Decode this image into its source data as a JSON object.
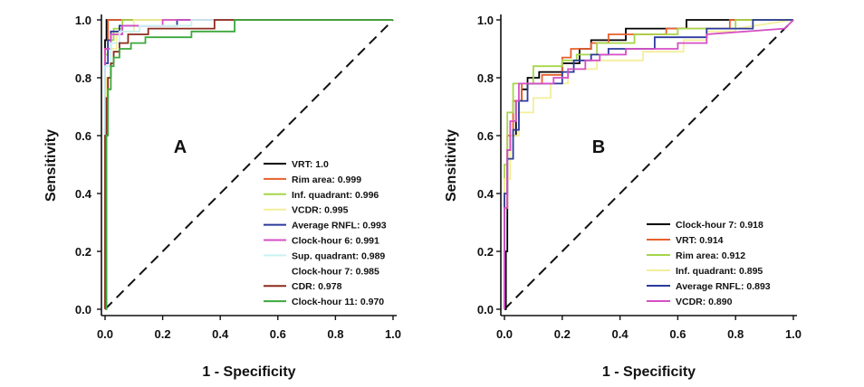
{
  "chart_data": [
    {
      "type": "line",
      "panel_label": "A",
      "xlabel": "1 - Specificity",
      "ylabel": "Sensitivity",
      "xlim": [
        0,
        1
      ],
      "ylim": [
        0,
        1
      ],
      "xticks": [
        "0.0",
        "0.2",
        "0.4",
        "0.6",
        "0.8",
        "1.0"
      ],
      "yticks": [
        "0.0",
        "0.2",
        "0.4",
        "0.6",
        "0.8",
        "1.0"
      ],
      "grid": false,
      "diagonal_reference": true,
      "legend_position": "bottom-right",
      "series": [
        {
          "name": "VRT: 1.0",
          "color": "#000000",
          "points": [
            [
              0,
              0
            ],
            [
              0,
              0.93
            ],
            [
              0.005,
              0.93
            ],
            [
              0.005,
              1
            ],
            [
              1,
              1
            ]
          ]
        },
        {
          "name": "Rim area: 0.999",
          "color": "#e8602c",
          "points": [
            [
              0,
              0
            ],
            [
              0,
              0.9
            ],
            [
              0.01,
              0.9
            ],
            [
              0.01,
              1
            ],
            [
              1,
              1
            ]
          ]
        },
        {
          "name": "Inf. quadrant: 0.996",
          "color": "#a6d64a",
          "points": [
            [
              0,
              0
            ],
            [
              0,
              0.88
            ],
            [
              0.01,
              0.88
            ],
            [
              0.01,
              0.93
            ],
            [
              0.03,
              0.93
            ],
            [
              0.03,
              0.97
            ],
            [
              0.06,
              0.97
            ],
            [
              0.06,
              1
            ],
            [
              1,
              1
            ]
          ]
        },
        {
          "name": "VCDR: 0.995",
          "color": "#f4ee9a",
          "points": [
            [
              0,
              0
            ],
            [
              0,
              0.3
            ],
            [
              0.005,
              0.3
            ],
            [
              0.005,
              0.8
            ],
            [
              0.02,
              0.8
            ],
            [
              0.02,
              0.9
            ],
            [
              0.04,
              0.9
            ],
            [
              0.04,
              0.96
            ],
            [
              0.1,
              0.96
            ],
            [
              0.1,
              1
            ],
            [
              1,
              1
            ]
          ]
        },
        {
          "name": "Average RNFL: 0.993",
          "color": "#2b3a9c",
          "points": [
            [
              0,
              0
            ],
            [
              0,
              0.85
            ],
            [
              0.01,
              0.85
            ],
            [
              0.01,
              0.93
            ],
            [
              0.02,
              0.93
            ],
            [
              0.02,
              0.96
            ],
            [
              0.05,
              0.96
            ],
            [
              0.05,
              0.98
            ],
            [
              0.25,
              0.98
            ],
            [
              0.25,
              1
            ],
            [
              1,
              1
            ]
          ]
        },
        {
          "name": "Clock-hour 6: 0.991",
          "color": "#d64fc4",
          "points": [
            [
              0,
              0
            ],
            [
              0,
              0.9
            ],
            [
              0.02,
              0.9
            ],
            [
              0.02,
              0.95
            ],
            [
              0.06,
              0.95
            ],
            [
              0.06,
              0.98
            ],
            [
              0.2,
              0.98
            ],
            [
              0.2,
              1
            ],
            [
              1,
              1
            ]
          ]
        },
        {
          "name": "Sup. quadrant: 0.989",
          "color": "#c8f2f0",
          "points": [
            [
              0,
              0
            ],
            [
              0,
              0.84
            ],
            [
              0.02,
              0.84
            ],
            [
              0.02,
              0.92
            ],
            [
              0.05,
              0.92
            ],
            [
              0.05,
              0.96
            ],
            [
              0.12,
              0.96
            ],
            [
              0.12,
              0.98
            ],
            [
              0.3,
              0.98
            ],
            [
              0.3,
              1
            ],
            [
              1,
              1
            ]
          ]
        },
        {
          "name": "Clock-hour 7: 0.985",
          "color": "#ffffff",
          "points": []
        },
        {
          "name": "CDR: 0.978",
          "color": "#8e2b1c",
          "points": [
            [
              0,
              0
            ],
            [
              0,
              0.6
            ],
            [
              0.005,
              0.6
            ],
            [
              0.005,
              0.73
            ],
            [
              0.01,
              0.73
            ],
            [
              0.01,
              0.8
            ],
            [
              0.02,
              0.8
            ],
            [
              0.02,
              0.85
            ],
            [
              0.03,
              0.85
            ],
            [
              0.03,
              0.89
            ],
            [
              0.05,
              0.89
            ],
            [
              0.05,
              0.92
            ],
            [
              0.08,
              0.92
            ],
            [
              0.08,
              0.95
            ],
            [
              0.15,
              0.95
            ],
            [
              0.15,
              0.97
            ],
            [
              0.38,
              0.97
            ],
            [
              0.38,
              1
            ],
            [
              1,
              1
            ]
          ]
        },
        {
          "name": "Clock-hour 11: 0.970",
          "color": "#3ca83c",
          "points": [
            [
              0,
              0
            ],
            [
              0.005,
              0
            ],
            [
              0.005,
              0.6
            ],
            [
              0.01,
              0.6
            ],
            [
              0.01,
              0.76
            ],
            [
              0.02,
              0.76
            ],
            [
              0.02,
              0.84
            ],
            [
              0.03,
              0.84
            ],
            [
              0.03,
              0.87
            ],
            [
              0.05,
              0.87
            ],
            [
              0.05,
              0.9
            ],
            [
              0.09,
              0.9
            ],
            [
              0.09,
              0.92
            ],
            [
              0.14,
              0.92
            ],
            [
              0.14,
              0.94
            ],
            [
              0.3,
              0.94
            ],
            [
              0.3,
              0.96
            ],
            [
              0.45,
              0.96
            ],
            [
              0.45,
              1
            ],
            [
              1,
              1
            ]
          ]
        }
      ]
    },
    {
      "type": "line",
      "panel_label": "B",
      "xlabel": "1 - Specificity",
      "ylabel": "Sensitivity",
      "xlim": [
        0,
        1
      ],
      "ylim": [
        0,
        1
      ],
      "xticks": [
        "0.0",
        "0.2",
        "0.4",
        "0.6",
        "0.8",
        "1.0"
      ],
      "yticks": [
        "0.0",
        "0.2",
        "0.4",
        "0.6",
        "0.8",
        "1.0"
      ],
      "grid": false,
      "diagonal_reference": true,
      "legend_position": "bottom-right",
      "series": [
        {
          "name": "Clock-hour 7: 0.918",
          "color": "#000000",
          "points": [
            [
              0,
              0
            ],
            [
              0.005,
              0
            ],
            [
              0.005,
              0.2
            ],
            [
              0.01,
              0.2
            ],
            [
              0.01,
              0.55
            ],
            [
              0.02,
              0.55
            ],
            [
              0.02,
              0.6
            ],
            [
              0.04,
              0.6
            ],
            [
              0.04,
              0.72
            ],
            [
              0.06,
              0.72
            ],
            [
              0.06,
              0.76
            ],
            [
              0.08,
              0.76
            ],
            [
              0.08,
              0.8
            ],
            [
              0.12,
              0.8
            ],
            [
              0.12,
              0.82
            ],
            [
              0.2,
              0.82
            ],
            [
              0.2,
              0.85
            ],
            [
              0.26,
              0.85
            ],
            [
              0.26,
              0.9
            ],
            [
              0.3,
              0.9
            ],
            [
              0.3,
              0.93
            ],
            [
              0.42,
              0.93
            ],
            [
              0.42,
              0.97
            ],
            [
              0.63,
              0.97
            ],
            [
              0.63,
              1
            ],
            [
              1,
              1
            ]
          ]
        },
        {
          "name": "VRT: 0.914",
          "color": "#e8602c",
          "points": [
            [
              0,
              0
            ],
            [
              0,
              0.35
            ],
            [
              0.01,
              0.35
            ],
            [
              0.01,
              0.6
            ],
            [
              0.03,
              0.6
            ],
            [
              0.03,
              0.72
            ],
            [
              0.06,
              0.72
            ],
            [
              0.06,
              0.78
            ],
            [
              0.13,
              0.78
            ],
            [
              0.13,
              0.81
            ],
            [
              0.2,
              0.81
            ],
            [
              0.2,
              0.87
            ],
            [
              0.23,
              0.87
            ],
            [
              0.23,
              0.9
            ],
            [
              0.3,
              0.9
            ],
            [
              0.3,
              0.92
            ],
            [
              0.36,
              0.92
            ],
            [
              0.36,
              0.95
            ],
            [
              0.56,
              0.95
            ],
            [
              0.56,
              0.97
            ],
            [
              0.78,
              0.97
            ],
            [
              0.78,
              1
            ],
            [
              1,
              1
            ]
          ]
        },
        {
          "name": "Rim area: 0.912",
          "color": "#a6d64a",
          "points": [
            [
              0,
              0
            ],
            [
              0,
              0.5
            ],
            [
              0.01,
              0.5
            ],
            [
              0.01,
              0.68
            ],
            [
              0.03,
              0.68
            ],
            [
              0.03,
              0.78
            ],
            [
              0.1,
              0.78
            ],
            [
              0.1,
              0.84
            ],
            [
              0.2,
              0.84
            ],
            [
              0.2,
              0.86
            ],
            [
              0.25,
              0.86
            ],
            [
              0.25,
              0.88
            ],
            [
              0.32,
              0.88
            ],
            [
              0.32,
              0.92
            ],
            [
              0.45,
              0.92
            ],
            [
              0.45,
              0.95
            ],
            [
              0.6,
              0.95
            ],
            [
              0.6,
              0.97
            ],
            [
              0.8,
              0.97
            ],
            [
              0.8,
              1
            ],
            [
              1,
              1
            ]
          ]
        },
        {
          "name": "Inf. quadrant: 0.895",
          "color": "#f4ee9a",
          "points": [
            [
              0,
              0
            ],
            [
              0,
              0.45
            ],
            [
              0.02,
              0.45
            ],
            [
              0.02,
              0.6
            ],
            [
              0.05,
              0.6
            ],
            [
              0.05,
              0.68
            ],
            [
              0.1,
              0.68
            ],
            [
              0.1,
              0.73
            ],
            [
              0.16,
              0.73
            ],
            [
              0.16,
              0.78
            ],
            [
              0.22,
              0.78
            ],
            [
              0.22,
              0.83
            ],
            [
              0.32,
              0.83
            ],
            [
              0.32,
              0.86
            ],
            [
              0.48,
              0.86
            ],
            [
              0.48,
              0.89
            ],
            [
              0.62,
              0.89
            ],
            [
              0.62,
              0.93
            ],
            [
              0.7,
              0.93
            ],
            [
              0.7,
              0.96
            ],
            [
              0.8,
              0.96
            ],
            [
              0.8,
              0.97
            ],
            [
              1,
              1
            ]
          ]
        },
        {
          "name": "Average RNFL: 0.893",
          "color": "#2b3a9c",
          "points": [
            [
              0,
              0
            ],
            [
              0,
              0.4
            ],
            [
              0.01,
              0.4
            ],
            [
              0.01,
              0.52
            ],
            [
              0.03,
              0.52
            ],
            [
              0.03,
              0.62
            ],
            [
              0.05,
              0.62
            ],
            [
              0.05,
              0.72
            ],
            [
              0.08,
              0.72
            ],
            [
              0.08,
              0.78
            ],
            [
              0.2,
              0.78
            ],
            [
              0.2,
              0.82
            ],
            [
              0.24,
              0.82
            ],
            [
              0.24,
              0.86
            ],
            [
              0.3,
              0.86
            ],
            [
              0.3,
              0.88
            ],
            [
              0.36,
              0.88
            ],
            [
              0.36,
              0.9
            ],
            [
              0.52,
              0.9
            ],
            [
              0.52,
              0.94
            ],
            [
              0.7,
              0.94
            ],
            [
              0.7,
              0.97
            ],
            [
              0.86,
              0.97
            ],
            [
              0.86,
              1
            ],
            [
              1,
              1
            ]
          ]
        },
        {
          "name": "VCDR: 0.890",
          "color": "#d64fc4",
          "points": [
            [
              0,
              0
            ],
            [
              0,
              0.35
            ],
            [
              0.01,
              0.35
            ],
            [
              0.01,
              0.55
            ],
            [
              0.02,
              0.55
            ],
            [
              0.02,
              0.65
            ],
            [
              0.04,
              0.65
            ],
            [
              0.04,
              0.72
            ],
            [
              0.05,
              0.72
            ],
            [
              0.05,
              0.78
            ],
            [
              0.17,
              0.78
            ],
            [
              0.17,
              0.8
            ],
            [
              0.22,
              0.8
            ],
            [
              0.22,
              0.83
            ],
            [
              0.28,
              0.83
            ],
            [
              0.28,
              0.86
            ],
            [
              0.33,
              0.86
            ],
            [
              0.33,
              0.88
            ],
            [
              0.42,
              0.88
            ],
            [
              0.42,
              0.9
            ],
            [
              0.6,
              0.9
            ],
            [
              0.6,
              0.92
            ],
            [
              0.7,
              0.92
            ],
            [
              0.7,
              0.95
            ],
            [
              0.97,
              0.97
            ],
            [
              1,
              1
            ]
          ]
        }
      ]
    }
  ]
}
